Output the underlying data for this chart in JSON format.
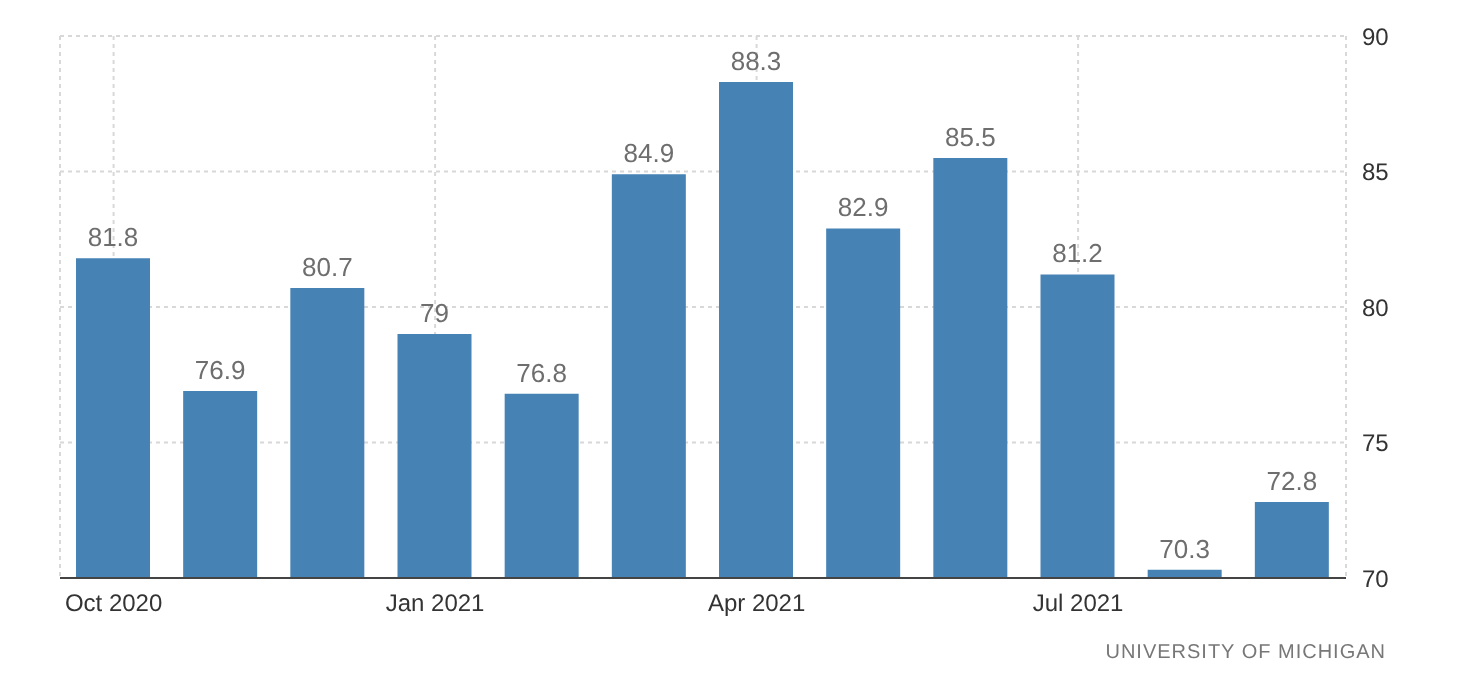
{
  "chart_data": {
    "type": "bar",
    "categories": [
      "Oct 2020",
      null,
      null,
      "Jan 2021",
      null,
      null,
      "Apr 2021",
      null,
      null,
      "Jul 2021",
      null,
      null
    ],
    "values": [
      81.8,
      76.9,
      80.7,
      79,
      76.8,
      84.9,
      88.3,
      82.9,
      85.5,
      81.2,
      70.3,
      72.8
    ],
    "color": "#4682b4",
    "ylim": [
      70,
      90
    ],
    "yticks": [
      70,
      75,
      80,
      85,
      90
    ],
    "grid": true,
    "data_labels": true,
    "annotations": [
      "UNIVERSITY OF MICHIGAN"
    ]
  }
}
